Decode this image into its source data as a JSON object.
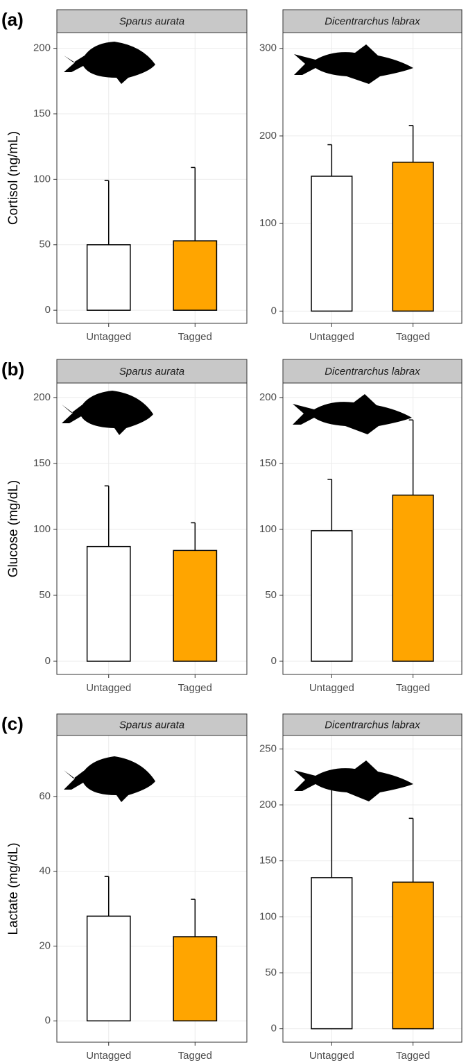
{
  "chart_data": [
    {
      "type": "bar",
      "panel_label": "(a)",
      "strip": "Sparus aurata",
      "ylabel": "Cortisol (ng/mL)",
      "categories": [
        "Untagged",
        "Tagged"
      ],
      "values": [
        50,
        53
      ],
      "errors": [
        49,
        56
      ],
      "colors": [
        "#ffffff",
        "#ffa500"
      ],
      "ylim": [
        -10,
        212
      ],
      "yticks": [
        0,
        50,
        100,
        150,
        200
      ],
      "grid": true
    },
    {
      "type": "bar",
      "strip": "Dicentrarchus labrax",
      "categories": [
        "Untagged",
        "Tagged"
      ],
      "values": [
        154,
        170
      ],
      "errors": [
        36,
        42
      ],
      "colors": [
        "#ffffff",
        "#ffa500"
      ],
      "ylim": [
        -14,
        318
      ],
      "yticks": [
        0,
        100,
        200,
        300
      ],
      "grid": true
    },
    {
      "type": "bar",
      "panel_label": "(b)",
      "strip": "Sparus aurata",
      "ylabel": "Glucose (mg/dL)",
      "categories": [
        "Untagged",
        "Tagged"
      ],
      "values": [
        87,
        84
      ],
      "errors": [
        46,
        21
      ],
      "colors": [
        "#ffffff",
        "#ffa500"
      ],
      "ylim": [
        -10,
        211
      ],
      "yticks": [
        0,
        50,
        100,
        150,
        200
      ],
      "grid": true
    },
    {
      "type": "bar",
      "strip": "Dicentrarchus labrax",
      "categories": [
        "Untagged",
        "Tagged"
      ],
      "values": [
        99,
        126
      ],
      "errors": [
        39,
        57
      ],
      "colors": [
        "#ffffff",
        "#ffa500"
      ],
      "ylim": [
        -10,
        211
      ],
      "yticks": [
        0,
        50,
        100,
        150,
        200
      ],
      "grid": true
    },
    {
      "type": "bar",
      "panel_label": "(c)",
      "strip": "Sparus aurata",
      "ylabel": "Lactate (mg/dL)",
      "categories": [
        "Untagged",
        "Tagged"
      ],
      "values": [
        28,
        22.5
      ],
      "errors": [
        10.6,
        10
      ],
      "colors": [
        "#ffffff",
        "#ffa500"
      ],
      "ylim": [
        -5.7,
        76.3
      ],
      "yticks": [
        0,
        20,
        40,
        60
      ],
      "grid": true
    },
    {
      "type": "bar",
      "strip": "Dicentrarchus labrax",
      "categories": [
        "Untagged",
        "Tagged"
      ],
      "values": [
        135,
        131
      ],
      "errors": [
        82,
        57
      ],
      "colors": [
        "#ffffff",
        "#ffa500"
      ],
      "ylim": [
        -12,
        262
      ],
      "yticks": [
        0,
        50,
        100,
        150,
        200,
        250
      ],
      "grid": true
    }
  ]
}
